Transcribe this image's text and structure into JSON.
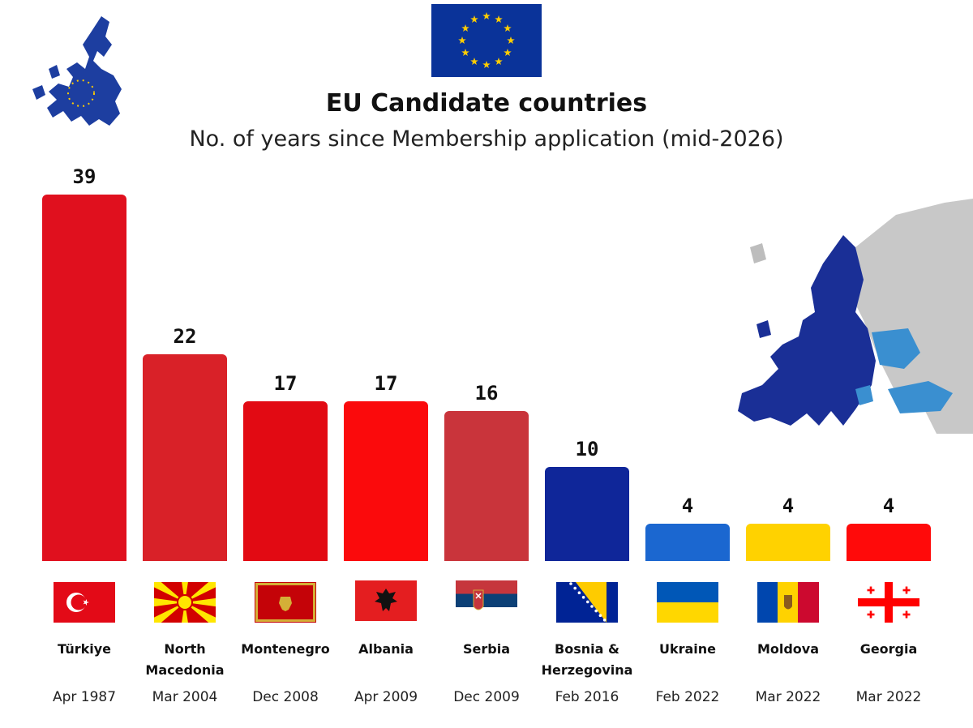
{
  "header": {
    "title": "EU Candidate countries",
    "subtitle": "No. of years since Membership application (mid-2026)"
  },
  "chart_data": {
    "type": "bar",
    "title": "EU Candidate countries",
    "subtitle": "No. of years since Membership application (mid-2026)",
    "categories": [
      "Türkiye",
      "North Macedonia",
      "Montenegro",
      "Albania",
      "Serbia",
      "Bosnia & Herzegovina",
      "Ukraine",
      "Moldova",
      "Georgia"
    ],
    "values": [
      39,
      22,
      17,
      17,
      16,
      10,
      4,
      4,
      4
    ],
    "value_labels": [
      "39",
      "22",
      "17",
      "17",
      "16",
      "10",
      "4",
      "4",
      "4"
    ],
    "label_lines": [
      [
        "Türkiye"
      ],
      [
        "North",
        "Macedonia"
      ],
      [
        "Montenegro"
      ],
      [
        "Albania"
      ],
      [
        "Serbia"
      ],
      [
        "Bosnia &",
        "Herzegovina"
      ],
      [
        "Ukraine"
      ],
      [
        "Moldova"
      ],
      [
        "Georgia"
      ]
    ],
    "application_dates": [
      "Apr 1987",
      "Mar 2004",
      "Dec 2008",
      "Apr 2009",
      "Dec 2009",
      "Feb 2016",
      "Feb 2022",
      "Mar 2022",
      "Mar 2022"
    ],
    "bar_colors": [
      "#e0101e",
      "#d92128",
      "#e20a13",
      "#fb0a0c",
      "#c9343b",
      "#0f2699",
      "#1b67d0",
      "#ffd200",
      "#ff0a0a"
    ],
    "flags": [
      "turkey-flag",
      "north-macedonia-flag",
      "montenegro-flag",
      "albania-flag",
      "serbia-flag",
      "bosnia-flag",
      "ukraine-flag",
      "moldova-flag",
      "georgia-flag"
    ],
    "ylim": [
      0,
      39
    ],
    "grid": false,
    "legend": "none"
  },
  "decor": {
    "eu_flag": "eu-flag-icon",
    "eu_map_small": "eu-map-icon",
    "europe_map": "europe-map-image"
  }
}
